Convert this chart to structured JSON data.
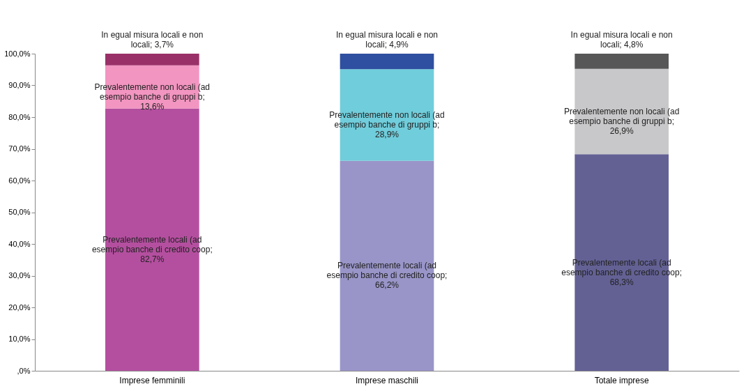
{
  "chart_data": {
    "type": "bar",
    "stacked": true,
    "categories": [
      "Imprese femminili",
      "Imprese maschili",
      "Totale imprese"
    ],
    "series": [
      {
        "colors": [
          "#b44f9f",
          "#9995c8",
          "#636194"
        ],
        "values": [
          82.7,
          66.2,
          68.3
        ],
        "value_labels": [
          "Prevalentemente locali (ad esempio banche di credito coop; 82,7%",
          "Prevalentemente locali (ad esempio banche di credito coop; 66,2%",
          "Prevalentemente locali (ad esempio banche di credito coop; 68,3%"
        ]
      },
      {
        "colors": [
          "#f295c0",
          "#70cddb",
          "#c8c8ca"
        ],
        "values": [
          13.6,
          28.9,
          26.9
        ],
        "value_labels": [
          "Prevalentemente non locali (ad esempio banche di gruppi b; 13,6%",
          "Prevalentemente non locali (ad esempio banche di gruppi b; 28,9%",
          "Prevalentemente non locali (ad esempio banche di gruppi b; 26,9%"
        ]
      },
      {
        "colors": [
          "#9a3068",
          "#2f4fa0",
          "#575757"
        ],
        "values": [
          3.7,
          4.9,
          4.8
        ],
        "value_labels": [
          "In egual misura locali e non locali; 3,7%",
          "In egual misura locali e non locali; 4,9%",
          "In egual misura locali e non locali; 4,8%"
        ]
      }
    ],
    "ylim": [
      0,
      100
    ],
    "yticks": [
      {
        "value": 0,
        "label": ",0%"
      },
      {
        "value": 10,
        "label": "10,0%"
      },
      {
        "value": 20,
        "label": "20,0%"
      },
      {
        "value": 30,
        "label": "30,0%"
      },
      {
        "value": 40,
        "label": "40,0%"
      },
      {
        "value": 50,
        "label": "50,0%"
      },
      {
        "value": 60,
        "label": "60,0%"
      },
      {
        "value": 70,
        "label": "70,0%"
      },
      {
        "value": 80,
        "label": "80,0%"
      },
      {
        "value": 90,
        "label": "90,0%"
      },
      {
        "value": 100,
        "label": "100,0%"
      }
    ],
    "grid": false
  }
}
